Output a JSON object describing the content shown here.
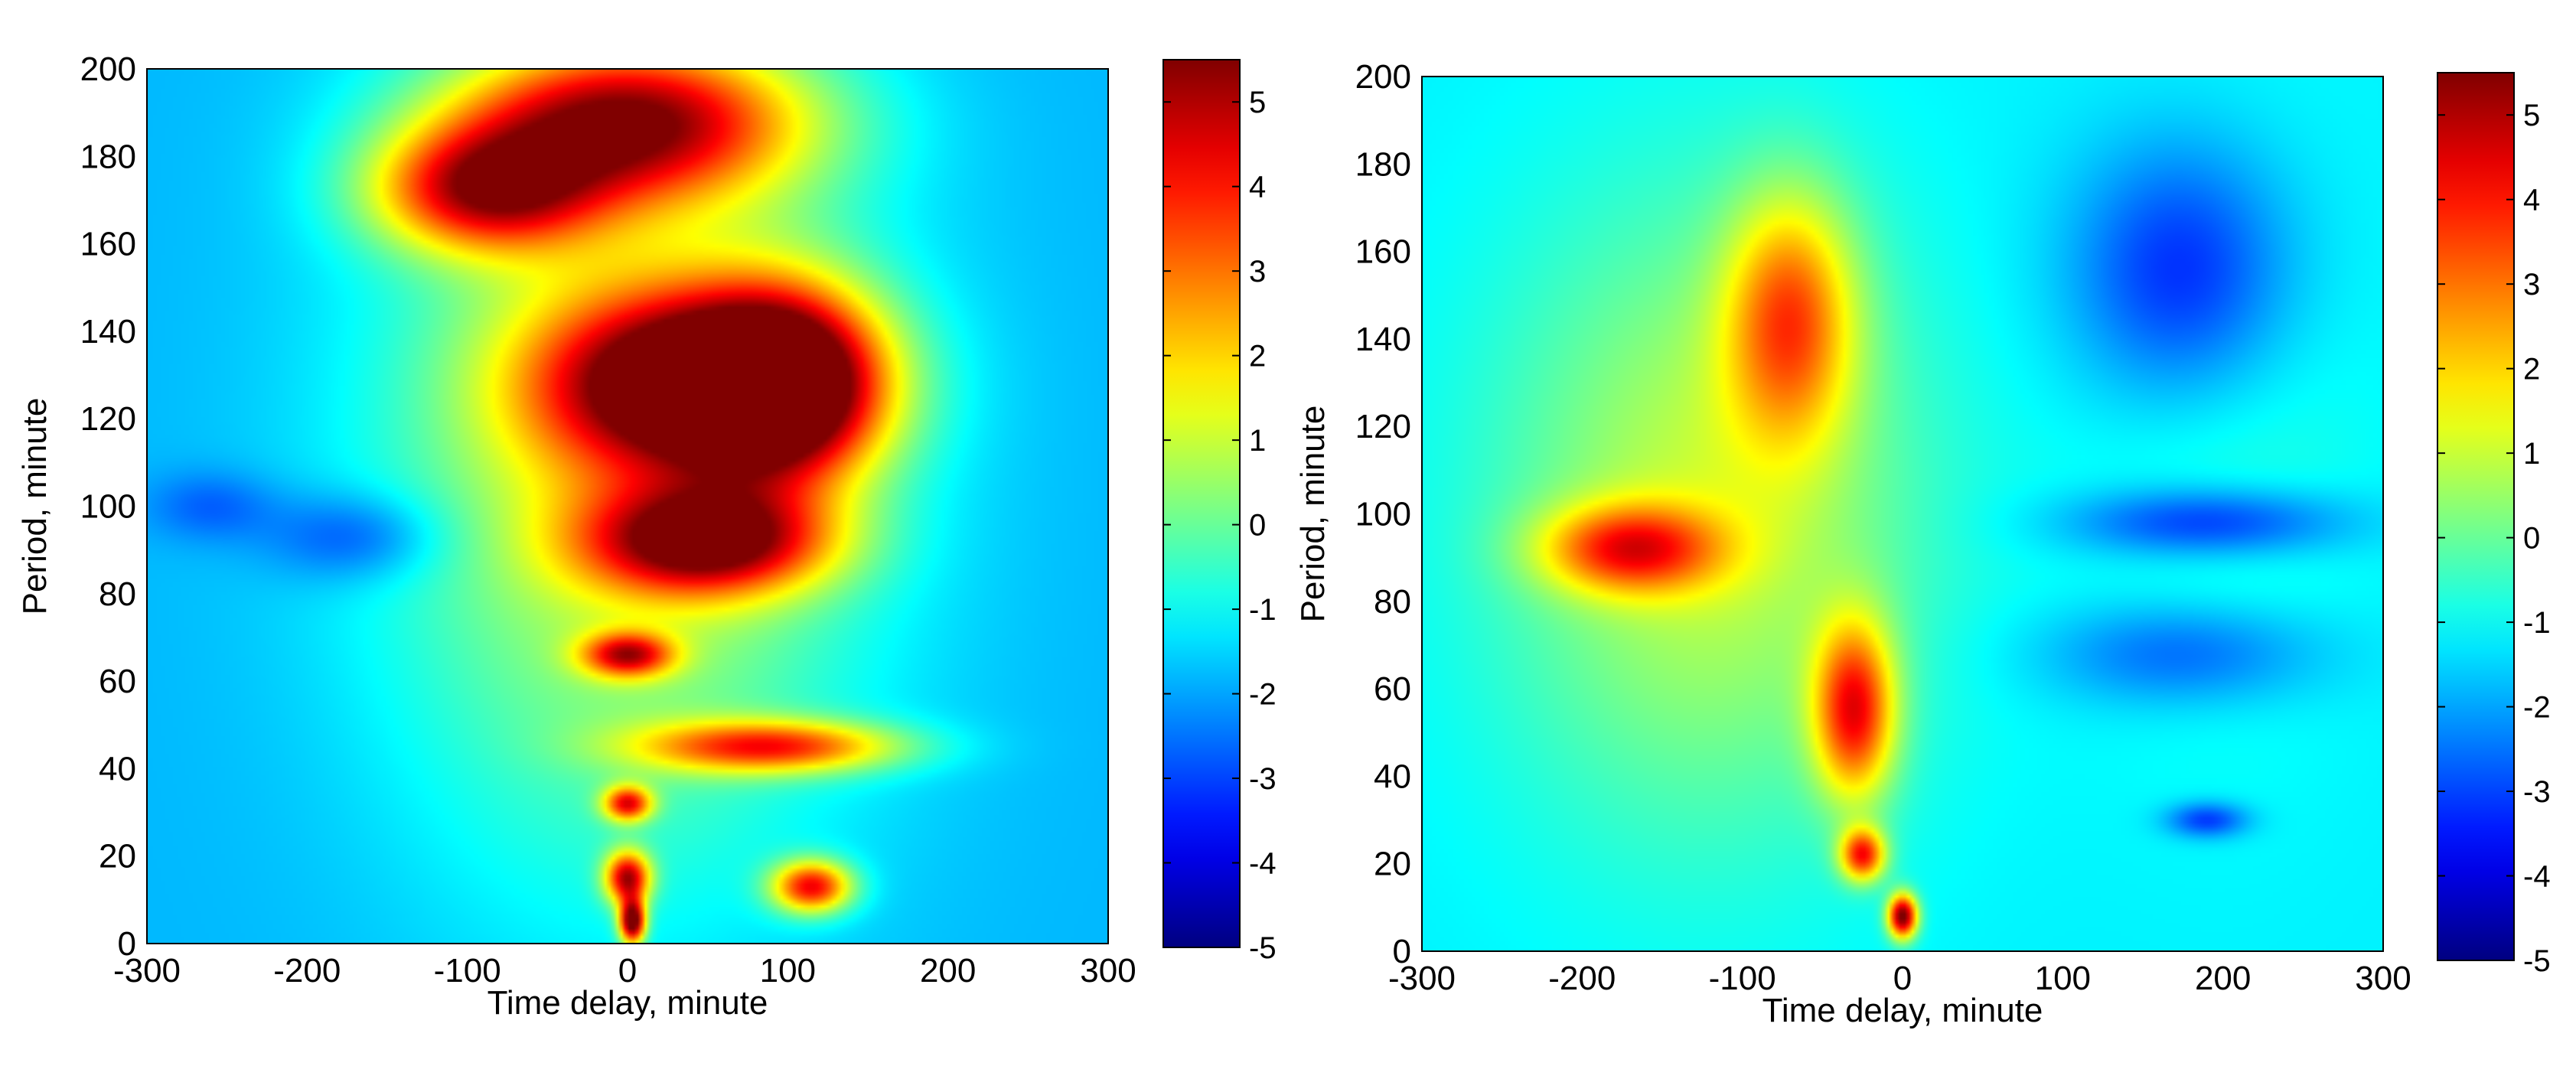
{
  "colors": {
    "colormap": [
      "#00008f",
      "#0000ff",
      "#00ffff",
      "#ffff00",
      "#ff0000",
      "#800000"
    ],
    "frame": "#000000"
  },
  "chart_data": [
    {
      "type": "heatmap",
      "title": "",
      "xlabel": "Time delay, minute",
      "ylabel": "Period, minute",
      "xlim": [
        -300,
        300
      ],
      "ylim": [
        0,
        200
      ],
      "xticks": [
        "-300",
        "-200",
        "-100",
        "0",
        "100",
        "200",
        "300"
      ],
      "yticks": [
        "0",
        "20",
        "40",
        "60",
        "80",
        "100",
        "120",
        "140",
        "160",
        "180",
        "200"
      ],
      "colorbar": {
        "ticks": [
          "5",
          "4",
          "3",
          "2",
          "1",
          "0",
          "-1",
          "-2",
          "-3",
          "-4",
          "-5"
        ],
        "range": [
          -5,
          5.5
        ]
      },
      "background": -1.8,
      "features": [
        {
          "x": 0,
          "y": 188,
          "sx": 110,
          "sy": 18,
          "v": 4.5
        },
        {
          "x": -90,
          "y": 172,
          "sx": 70,
          "sy": 14,
          "v": 3.5
        },
        {
          "x": 40,
          "y": 128,
          "sx": 95,
          "sy": 20,
          "v": 5.1
        },
        {
          "x": 100,
          "y": 128,
          "sx": 60,
          "sy": 22,
          "v": 4.0
        },
        {
          "x": 50,
          "y": 92,
          "sx": 75,
          "sy": 12,
          "v": 4.3
        },
        {
          "x": -170,
          "y": 93,
          "sx": 55,
          "sy": 10,
          "v": -3.3
        },
        {
          "x": -260,
          "y": 100,
          "sx": 40,
          "sy": 8,
          "v": -2.8
        },
        {
          "x": 0,
          "y": 66,
          "sx": 28,
          "sy": 5,
          "v": 3.0
        },
        {
          "x": 90,
          "y": 45,
          "sx": 80,
          "sy": 6,
          "v": 3.0
        },
        {
          "x": 0,
          "y": 32,
          "sx": 15,
          "sy": 4,
          "v": 3.2
        },
        {
          "x": 0,
          "y": 15,
          "sx": 14,
          "sy": 6,
          "v": 4.2
        },
        {
          "x": 3,
          "y": 5,
          "sx": 8,
          "sy": 5,
          "v": 5.5
        },
        {
          "x": 115,
          "y": 13,
          "sx": 25,
          "sy": 6,
          "v": 3.8
        },
        {
          "x": 0,
          "y": 110,
          "sx": 150,
          "sy": 90,
          "v": 1.2
        }
      ]
    },
    {
      "type": "heatmap",
      "title": "",
      "xlabel": "Time delay, minute",
      "ylabel": "Period, minute",
      "xlim": [
        -300,
        300
      ],
      "ylim": [
        0,
        200
      ],
      "xticks": [
        "-300",
        "-200",
        "-100",
        "0",
        "100",
        "200",
        "300"
      ],
      "yticks": [
        "0",
        "20",
        "40",
        "60",
        "80",
        "100",
        "120",
        "140",
        "160",
        "180",
        "200"
      ],
      "colorbar": {
        "ticks": [
          "5",
          "4",
          "3",
          "2",
          "1",
          "0",
          "-1",
          "-2",
          "-3",
          "-4",
          "-5"
        ],
        "range": [
          -5,
          5.5
        ]
      },
      "background": -1.2,
      "features": [
        {
          "x": -120,
          "y": 100,
          "sx": 130,
          "sy": 70,
          "v": 1.0
        },
        {
          "x": -170,
          "y": 92,
          "sx": 55,
          "sy": 10,
          "v": 2.8
        },
        {
          "x": -70,
          "y": 145,
          "sx": 40,
          "sy": 28,
          "v": 2.5
        },
        {
          "x": -30,
          "y": 55,
          "sx": 25,
          "sy": 20,
          "v": 3.6
        },
        {
          "x": -25,
          "y": 22,
          "sx": 14,
          "sy": 6,
          "v": 3.6
        },
        {
          "x": 0,
          "y": 8,
          "sx": 9,
          "sy": 5,
          "v": 5.6
        },
        {
          "x": 175,
          "y": 155,
          "sx": 70,
          "sy": 30,
          "v": -3.6
        },
        {
          "x": 190,
          "y": 98,
          "sx": 85,
          "sy": 8,
          "v": -3.4
        },
        {
          "x": 175,
          "y": 68,
          "sx": 85,
          "sy": 12,
          "v": -2.8
        },
        {
          "x": 190,
          "y": 30,
          "sx": 25,
          "sy": 4,
          "v": -3.2
        },
        {
          "x": 200,
          "y": 120,
          "sx": 90,
          "sy": 70,
          "v": -0.6
        }
      ]
    }
  ]
}
